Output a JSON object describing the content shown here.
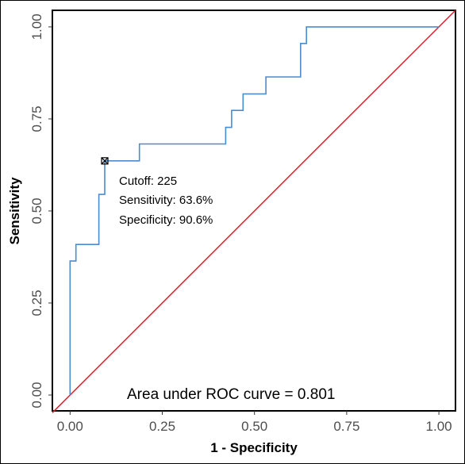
{
  "chart_data": {
    "type": "line",
    "title": "",
    "xlabel": "1 - Specificity",
    "ylabel": "Sensitivity",
    "xlim": [
      -0.048,
      1.045
    ],
    "ylim": [
      -0.043,
      1.045
    ],
    "x_ticks": [
      "0.00",
      "0.25",
      "0.50",
      "0.75",
      "1.00"
    ],
    "y_ticks": [
      "0.00",
      "0.25",
      "0.50",
      "0.75",
      "1.00"
    ],
    "grid": false,
    "colors": {
      "roc": "#4a8ccf",
      "diagonal": "#e0202a",
      "point": "#000000"
    },
    "series": [
      {
        "x": [
          0,
          0,
          0.016,
          0.016,
          0.078,
          0.078,
          0.094,
          0.094,
          0.188,
          0.188,
          0.422,
          0.422,
          0.438,
          0.438,
          0.469,
          0.469,
          0.531,
          0.531,
          0.625,
          0.625,
          0.641,
          0.641,
          1.0
        ],
        "y": [
          0,
          0.364,
          0.364,
          0.409,
          0.409,
          0.545,
          0.545,
          0.636,
          0.636,
          0.682,
          0.682,
          0.727,
          0.727,
          0.773,
          0.773,
          0.818,
          0.818,
          0.864,
          0.864,
          0.955,
          0.955,
          1.0,
          1.0
        ]
      }
    ],
    "reference_line": {
      "x": [
        -0.048,
        1.045
      ],
      "y": [
        -0.048,
        1.045
      ]
    },
    "cutoff_point": {
      "x": 0.094,
      "y": 0.636
    },
    "annotations": {
      "cutoff": "Cutoff: 225",
      "sensitivity": "Sensitivity: 63.6%",
      "specificity": "Specificity: 90.6%",
      "auc": "Area under ROC curve =  0.801"
    }
  }
}
